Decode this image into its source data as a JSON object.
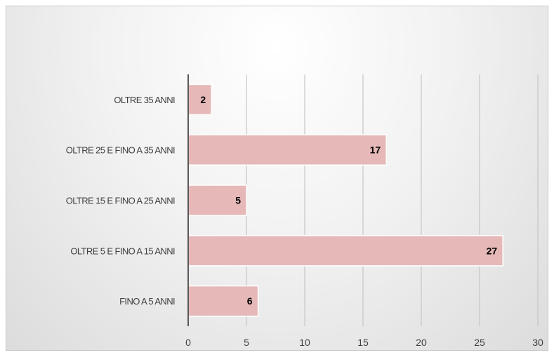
{
  "chart_data": {
    "type": "bar",
    "orientation": "horizontal",
    "categories": [
      "OLTRE 35 ANNI",
      "OLTRE 25 E FINO A 35 ANNI",
      "OLTRE 15 E FINO A 25 ANNI",
      "OLTRE 5 E FINO A 15 ANNI",
      "FINO A 5 ANNI"
    ],
    "values": [
      2,
      17,
      5,
      27,
      6
    ],
    "data_labels": [
      "2",
      "17",
      "5",
      "27",
      "6"
    ],
    "xlim": [
      0,
      30
    ],
    "x_ticks": [
      0,
      5,
      10,
      15,
      20,
      25,
      30
    ],
    "x_tick_labels": [
      "0",
      "5",
      "10",
      "15",
      "20",
      "25",
      "30"
    ],
    "grid": "vertical",
    "legend": "none",
    "colors": {
      "bar_fill": "#e6b8b8",
      "bar_stroke": "#ffffff",
      "grid": "#c6c6c6",
      "axis": "#595959",
      "label_text": "#404040",
      "value_text": "#000000"
    }
  }
}
